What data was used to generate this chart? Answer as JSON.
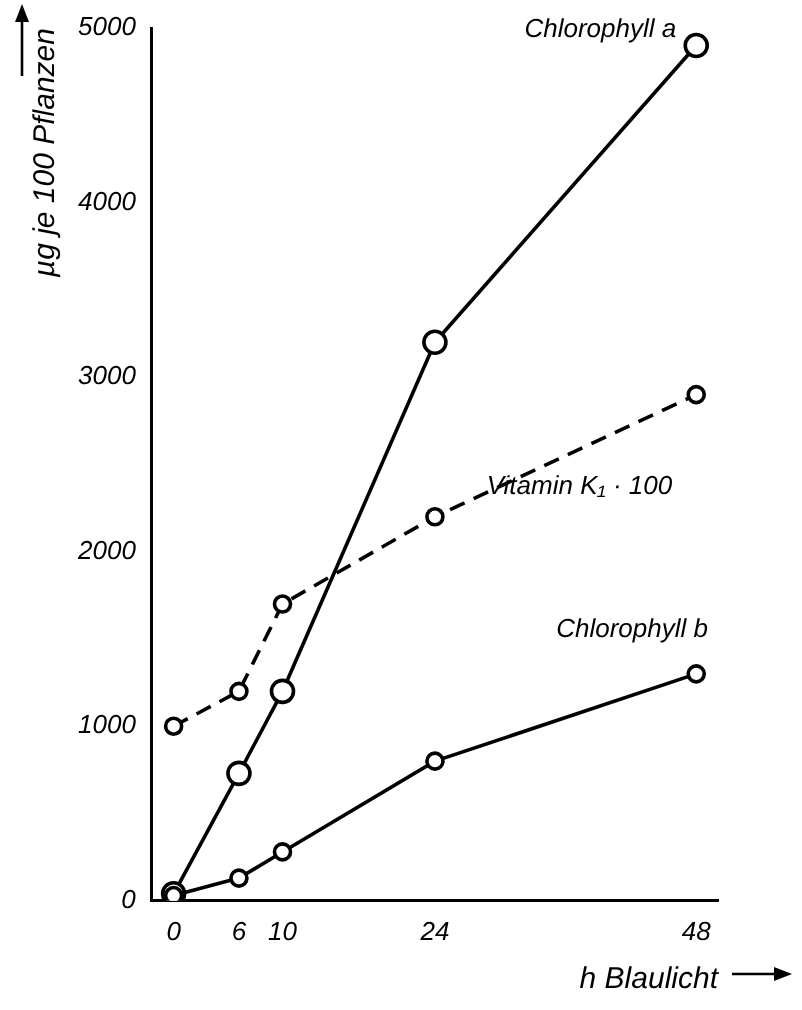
{
  "chart_data": {
    "type": "line",
    "xlabel": "h Blaulicht",
    "ylabel": "µg je 100 Pflanzen",
    "x": [
      0,
      6,
      10,
      24,
      48
    ],
    "series": [
      {
        "name": "Chlorophyll a",
        "color": "#000000",
        "values": [
          40,
          730,
          1200,
          3200,
          4900
        ],
        "line_style": "solid"
      },
      {
        "name": "Vitamin K₁ · 100",
        "color": "#000000",
        "values": [
          1000,
          1200,
          1700,
          2200,
          2900
        ],
        "line_style": "dashed"
      },
      {
        "name": "Chlorophyll b",
        "color": "#000000",
        "values": [
          30,
          130,
          280,
          800,
          1300
        ],
        "line_style": "solid"
      }
    ],
    "xlim": [
      -2,
      50
    ],
    "xticks": [
      0,
      6,
      10,
      24,
      48
    ],
    "ylim": [
      0,
      5000
    ],
    "yticks": [
      0,
      1000,
      2000,
      3000,
      4000,
      5000
    ],
    "grid": false,
    "legend": false,
    "marker": "circle"
  }
}
